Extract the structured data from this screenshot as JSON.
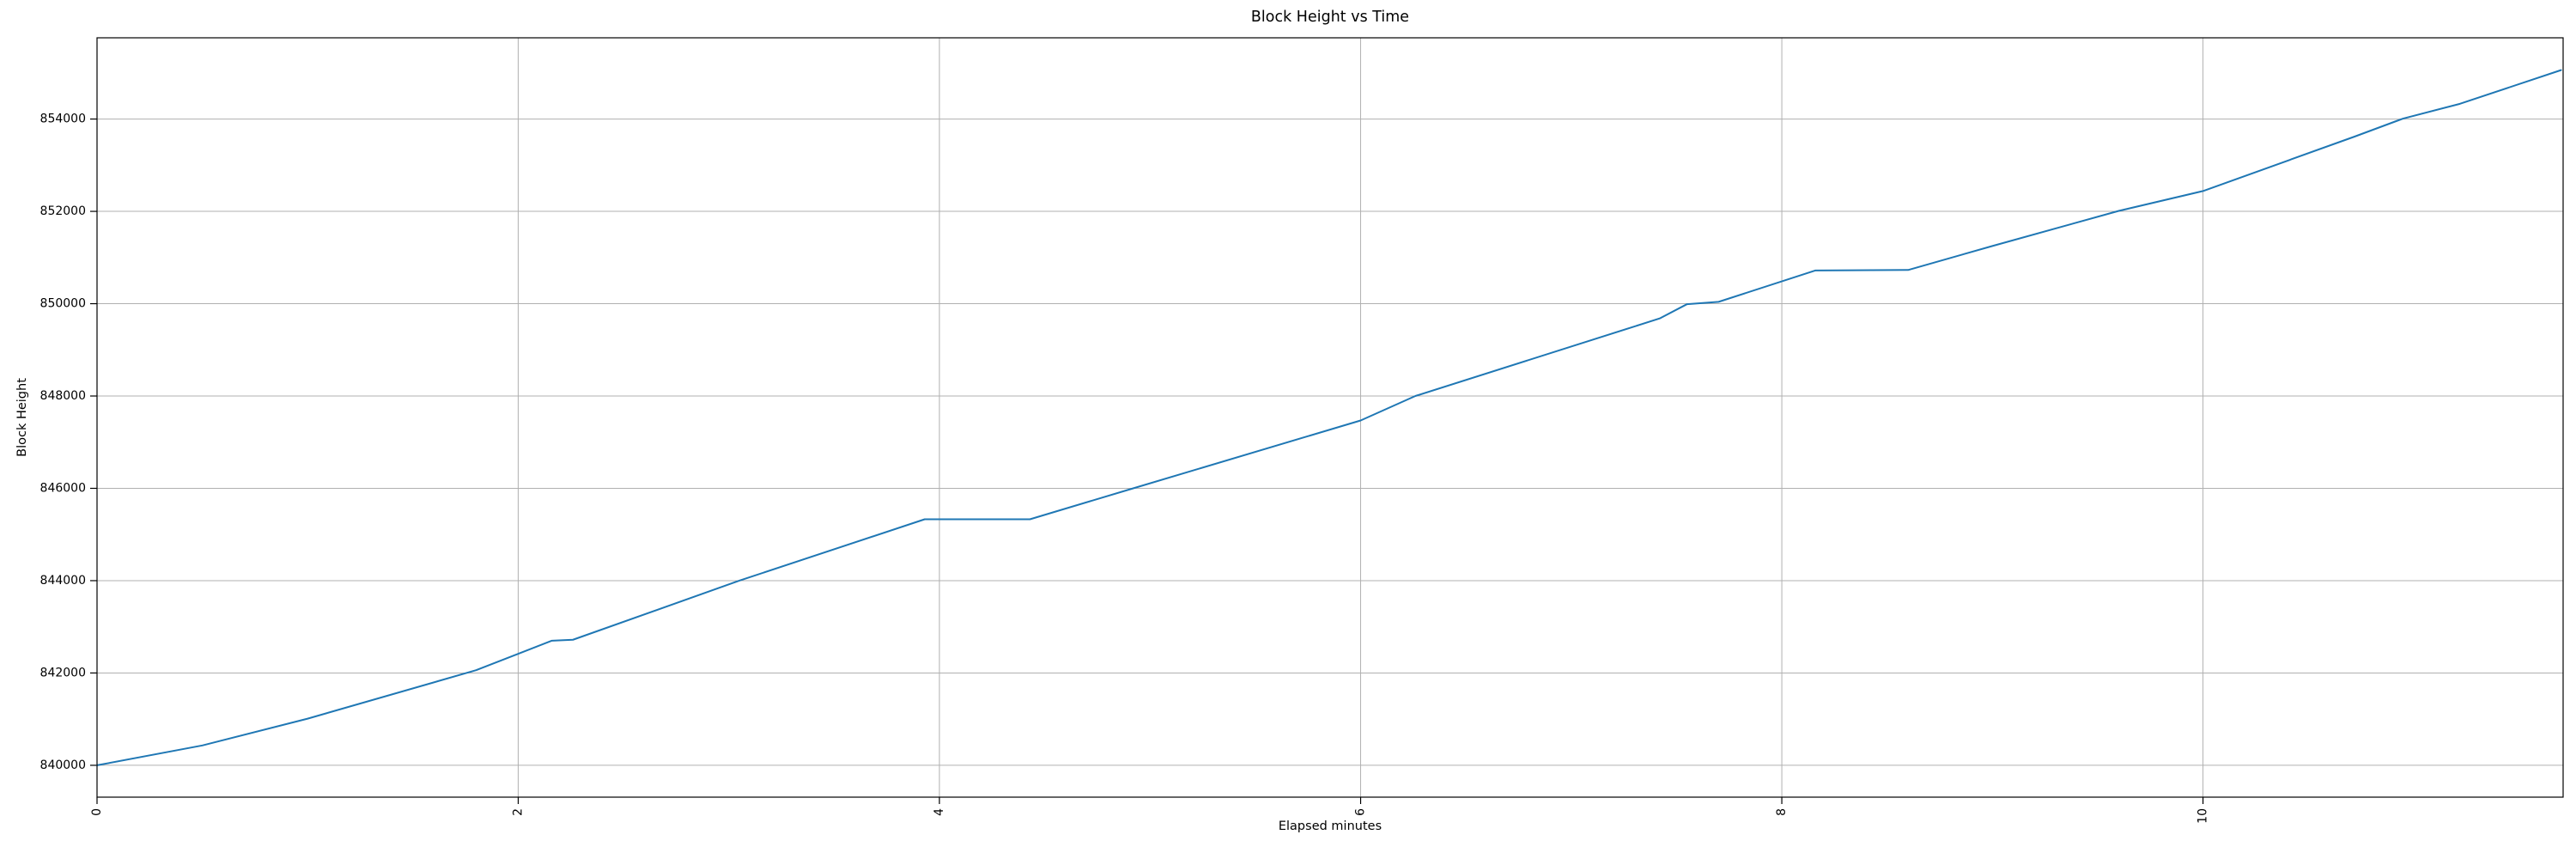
{
  "chart_data": {
    "type": "line",
    "title": "Block Height vs Time",
    "xlabel": "Elapsed minutes",
    "ylabel": "Block Height",
    "x_ticks": [
      0,
      2,
      4,
      6,
      8,
      10
    ],
    "y_ticks": [
      840000,
      842000,
      844000,
      846000,
      848000,
      850000,
      852000,
      854000
    ],
    "xlim": [
      0,
      11.71
    ],
    "ylim": [
      839310,
      855760
    ],
    "grid": true,
    "legend_position": "none",
    "x_tick_rotation_deg": 90,
    "line_color": "#1f77b4",
    "grid_color": "#b0b0b0",
    "spine_color": "#000000",
    "background_color": "#ffffff",
    "series": [
      {
        "name": "Block Height",
        "x": [
          0,
          0.5,
          1.0,
          1.8,
          2.16,
          2.26,
          3.05,
          3.93,
          4.43,
          4.92,
          6.0,
          6.26,
          7.42,
          7.55,
          7.7,
          8.16,
          8.6,
          9.0,
          9.6,
          10.0,
          10.72,
          10.95,
          11.22,
          11.7
        ],
        "y": [
          840000,
          840430,
          841010,
          842060,
          842700,
          842720,
          844000,
          845330,
          845330,
          846000,
          847470,
          848000,
          849680,
          849990,
          850040,
          850720,
          850730,
          851250,
          852010,
          852440,
          853620,
          854010,
          854330,
          855060
        ]
      }
    ]
  }
}
